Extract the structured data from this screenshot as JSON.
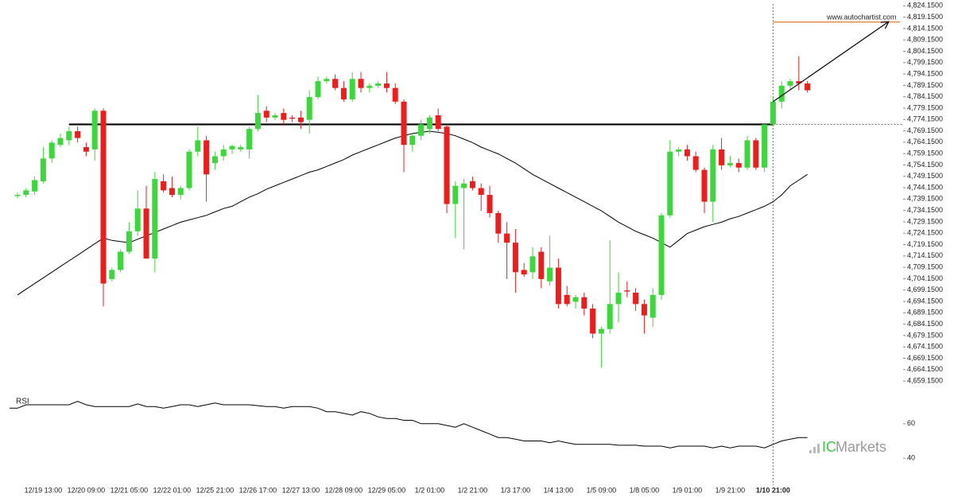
{
  "chart_data": {
    "type": "candlestick",
    "watermark": "www.autochartist.com",
    "brand": [
      "IC",
      "Markets"
    ],
    "categories": [
      null,
      null,
      null,
      "12/19 13:00",
      null,
      null,
      null,
      null,
      "12/20 09:00",
      null,
      null,
      null,
      null,
      "12/21 05:00",
      null,
      null,
      null,
      null,
      "12/22 01:00",
      null,
      null,
      null,
      null,
      "12/25 21:00",
      null,
      null,
      null,
      null,
      "12/26 17:00",
      null,
      null,
      null,
      null,
      "12/27 13:00",
      null,
      null,
      null,
      null,
      "12/28 09:00",
      null,
      null,
      null,
      null,
      "12/29 05:00",
      null,
      null,
      null,
      null,
      "1/2 01:00",
      null,
      null,
      null,
      null,
      "1/2 21:00",
      null,
      null,
      null,
      null,
      "1/3 17:00",
      null,
      null,
      null,
      null,
      "1/4 13:00",
      null,
      null,
      null,
      null,
      "1/5 09:00",
      null,
      null,
      null,
      null,
      "1/8 05:00",
      null,
      null,
      null,
      null,
      "1/9 01:00",
      null,
      null,
      null,
      null,
      "1/9 21:00",
      null,
      null,
      null,
      null,
      "1/10 21:00",
      null,
      null,
      null,
      null
    ],
    "highlight_index": 88,
    "open": [
      4740.5,
      4741,
      4742.5,
      4747,
      4757,
      4763,
      4765,
      4769,
      4762,
      4761,
      4778,
      4704,
      4708,
      4716,
      4725,
      4735,
      4713,
      4747,
      4744,
      4741,
      4744,
      4760,
      4765,
      4755,
      4758,
      4761,
      4761,
      4761,
      4770,
      4778,
      4775,
      4777,
      4775,
      4775,
      4774,
      4784,
      4791,
      4792,
      4788,
      4783,
      4792,
      4788,
      4789,
      4790,
      4788,
      4782,
      4763,
      4767,
      4770,
      4776,
      4771,
      4737,
      4744,
      4747,
      4744,
      4741,
      4733,
      4724,
      4720,
      4708,
      4707,
      4716,
      4703,
      4709,
      4697,
      4694,
      4696,
      4691,
      4680,
      4682,
      4693,
      4699,
      4698,
      4693,
      4687,
      4697,
      4732,
      4760,
      4761,
      4758,
      4752,
      4738,
      4761,
      4754,
      4755,
      4753,
      4765,
      4753,
      4772,
      4782,
      4789,
      4791,
      4790
    ],
    "high": [
      4742,
      4744,
      4749,
      4762,
      4765,
      4768,
      4771,
      4771,
      4764,
      4779,
      4779,
      4709,
      4717,
      4729,
      4743,
      4745,
      4751,
      4750,
      4749,
      4745,
      4761,
      4771,
      4767,
      4760,
      4763,
      4763,
      4763,
      4771,
      4785,
      4780,
      4777,
      4779,
      4776,
      4778,
      4787,
      4793,
      4793,
      4794,
      4791,
      4795,
      4795,
      4790,
      4791,
      4795,
      4790,
      4783,
      4768,
      4774,
      4776,
      4779,
      4772,
      4747,
      4748,
      4749,
      4746,
      4745,
      4734,
      4729,
      4726,
      4711,
      4718,
      4718,
      4723,
      4713,
      4701,
      4697,
      4698,
      4693,
      4683,
      4721,
      4707,
      4703,
      4700,
      4695,
      4700,
      4733,
      4765,
      4762,
      4763,
      4760,
      4753,
      4763,
      4766,
      4758,
      4757,
      4767,
      4766,
      4772,
      4784,
      4791,
      4792,
      4802,
      4791
    ],
    "low": [
      4739.5,
      4740,
      4741,
      4746,
      4755,
      4762,
      4763,
      4764,
      4758,
      4756,
      4692,
      4703,
      4707,
      4715,
      4723,
      4713,
      4707,
      4742,
      4740,
      4739,
      4743,
      4758,
      4738,
      4752,
      4756,
      4759,
      4760,
      4757,
      4769,
      4773,
      4774,
      4772,
      4773,
      4770,
      4768,
      4783,
      4790,
      4787,
      4782,
      4782,
      4786,
      4786,
      4788,
      4786,
      4781,
      4751,
      4760,
      4765,
      4768,
      4769,
      4733,
      4722,
      4717,
      4743,
      4734,
      4731,
      4720,
      4704,
      4698,
      4705,
      4704,
      4700,
      4701,
      4691,
      4692,
      4691,
      4688,
      4678,
      4665,
      4680,
      4685,
      4696,
      4690,
      4680,
      4683,
      4695,
      4731,
      4758,
      4756,
      4751,
      4733,
      4729,
      4752,
      4753,
      4751,
      4752,
      4752,
      4751,
      4771,
      4779,
      4787,
      4787,
      4786
    ],
    "close": [
      4741,
      4743,
      4747.5,
      4757,
      4764,
      4766,
      4769,
      4766,
      4760,
      4778,
      4702,
      4708,
      4716,
      4725,
      4735,
      4713,
      4748,
      4743,
      4741,
      4744,
      4760,
      4765,
      4750,
      4758,
      4761,
      4762.5,
      4762,
      4770,
      4777,
      4775,
      4776,
      4774,
      4774.5,
      4773,
      4784,
      4791,
      4792,
      4788,
      4783,
      4792,
      4788,
      4789,
      4790,
      4788,
      4782,
      4763,
      4767,
      4772,
      4775,
      4770,
      4737,
      4745,
      4746,
      4744,
      4741,
      4733,
      4724,
      4720,
      4707,
      4706,
      4714,
      4704,
      4709,
      4693,
      4693,
      4696,
      4691,
      4680,
      4682,
      4693,
      4698,
      4698.5,
      4693,
      4688,
      4697,
      4732,
      4760,
      4761,
      4758,
      4752,
      4738,
      4761,
      4754,
      4755,
      4753,
      4765,
      4753,
      4772,
      4782,
      4789,
      4791,
      4790,
      4787
    ],
    "up_color": "#3ad83a",
    "down_color": "#f01c1c",
    "ma": {
      "color": "#000000",
      "values": [
        4697,
        4699.5,
        4702,
        4704.5,
        4707,
        4709.5,
        4712,
        4714.5,
        4717,
        4719.5,
        4722,
        4721,
        4720.5,
        4720,
        4721.5,
        4723,
        4724.5,
        4726,
        4727.5,
        4729,
        4730,
        4731,
        4732,
        4733.5,
        4735,
        4736,
        4738,
        4740,
        4741.5,
        4743.5,
        4745,
        4746.5,
        4748,
        4749.5,
        4751,
        4752,
        4753.5,
        4755,
        4756.5,
        4758.5,
        4760,
        4761.5,
        4763,
        4764.5,
        4766,
        4767,
        4768,
        4768.5,
        4769,
        4768.5,
        4768,
        4767,
        4765.5,
        4764,
        4762,
        4760.5,
        4759,
        4757,
        4755,
        4752.5,
        4750,
        4748,
        4746,
        4744,
        4742,
        4740,
        4738,
        4736,
        4734,
        4731.5,
        4729,
        4727,
        4725,
        4723.5,
        4722,
        4720,
        4718,
        4721,
        4724,
        4725.5,
        4727,
        4728,
        4729,
        4730.5,
        4731.5,
        4733,
        4734.5,
        4736,
        4738,
        4741,
        4745,
        4747.5,
        4750
      ]
    },
    "support_level": 4772,
    "target_level": 4817,
    "target_color": "#e07a2a",
    "forecast_start": 4782,
    "ylim": [
      4655,
      4826
    ],
    "yticks": [
      {
        "value": 4824.15,
        "label": "4,824.1500"
      },
      {
        "value": 4819.15,
        "label": "4,819.1500"
      },
      {
        "value": 4814.15,
        "label": "4,814.1500"
      },
      {
        "value": 4809.15,
        "label": "4,809.1500"
      },
      {
        "value": 4804.15,
        "label": "4,804.1500"
      },
      {
        "value": 4799.15,
        "label": "4,799.1500"
      },
      {
        "value": 4794.15,
        "label": "4,794.1500"
      },
      {
        "value": 4789.15,
        "label": "4,789.1500"
      },
      {
        "value": 4784.15,
        "label": "4,784.1500"
      },
      {
        "value": 4779.15,
        "label": "4,779.1500"
      },
      {
        "value": 4774.15,
        "label": "4,774.1500"
      },
      {
        "value": 4769.15,
        "label": "4,769.1500"
      },
      {
        "value": 4764.15,
        "label": "4,764.1500"
      },
      {
        "value": 4759.15,
        "label": "4,759.1500"
      },
      {
        "value": 4754.15,
        "label": "4,754.1500"
      },
      {
        "value": 4749.15,
        "label": "4,749.1500"
      },
      {
        "value": 4744.15,
        "label": "4,744.1500"
      },
      {
        "value": 4739.15,
        "label": "4,739.1500"
      },
      {
        "value": 4734.15,
        "label": "4,734.1500"
      },
      {
        "value": 4729.15,
        "label": "4,729.1500"
      },
      {
        "value": 4724.15,
        "label": "4,724.1500"
      },
      {
        "value": 4719.15,
        "label": "4,719.1500"
      },
      {
        "value": 4714.15,
        "label": "4,714.1500"
      },
      {
        "value": 4709.15,
        "label": "4,709.1500"
      },
      {
        "value": 4704.15,
        "label": "4,704.1500"
      },
      {
        "value": 4699.15,
        "label": "4,699.1500"
      },
      {
        "value": 4694.15,
        "label": "4,694.1500"
      },
      {
        "value": 4689.15,
        "label": "4,689.1500"
      },
      {
        "value": 4684.15,
        "label": "4,684.1500"
      },
      {
        "value": 4679.15,
        "label": "4,679.1500"
      },
      {
        "value": 4674.15,
        "label": "4,674.1500"
      },
      {
        "value": 4669.15,
        "label": "4,669.1500"
      },
      {
        "value": 4664.15,
        "label": "4,664.1500"
      },
      {
        "value": 4659.15,
        "label": "4,659.1500"
      }
    ],
    "rsi": {
      "label": "RSI",
      "color": "#000000",
      "ylim": [
        29,
        77
      ],
      "yticks": [
        60,
        40
      ],
      "values": [
        69,
        71,
        71,
        71,
        71,
        71,
        71,
        73,
        71,
        70,
        70,
        70,
        70,
        70,
        71.5,
        70,
        70,
        69,
        70,
        71,
        71,
        70,
        71,
        72,
        71,
        71,
        71,
        71,
        70.5,
        70,
        70,
        69,
        70,
        70,
        70,
        69,
        67,
        67,
        66,
        65,
        67,
        66,
        64,
        63,
        63,
        62,
        62,
        60,
        60,
        60,
        59,
        58,
        60,
        58,
        56,
        54,
        52,
        52,
        51,
        50,
        50,
        50,
        49,
        50,
        49,
        48,
        48,
        48,
        48,
        48,
        47.5,
        47.5,
        47.5,
        47,
        47,
        47,
        46,
        47,
        47,
        47,
        47,
        46,
        47,
        46,
        47,
        47,
        47,
        46,
        48,
        50,
        51,
        52,
        52
      ]
    }
  }
}
